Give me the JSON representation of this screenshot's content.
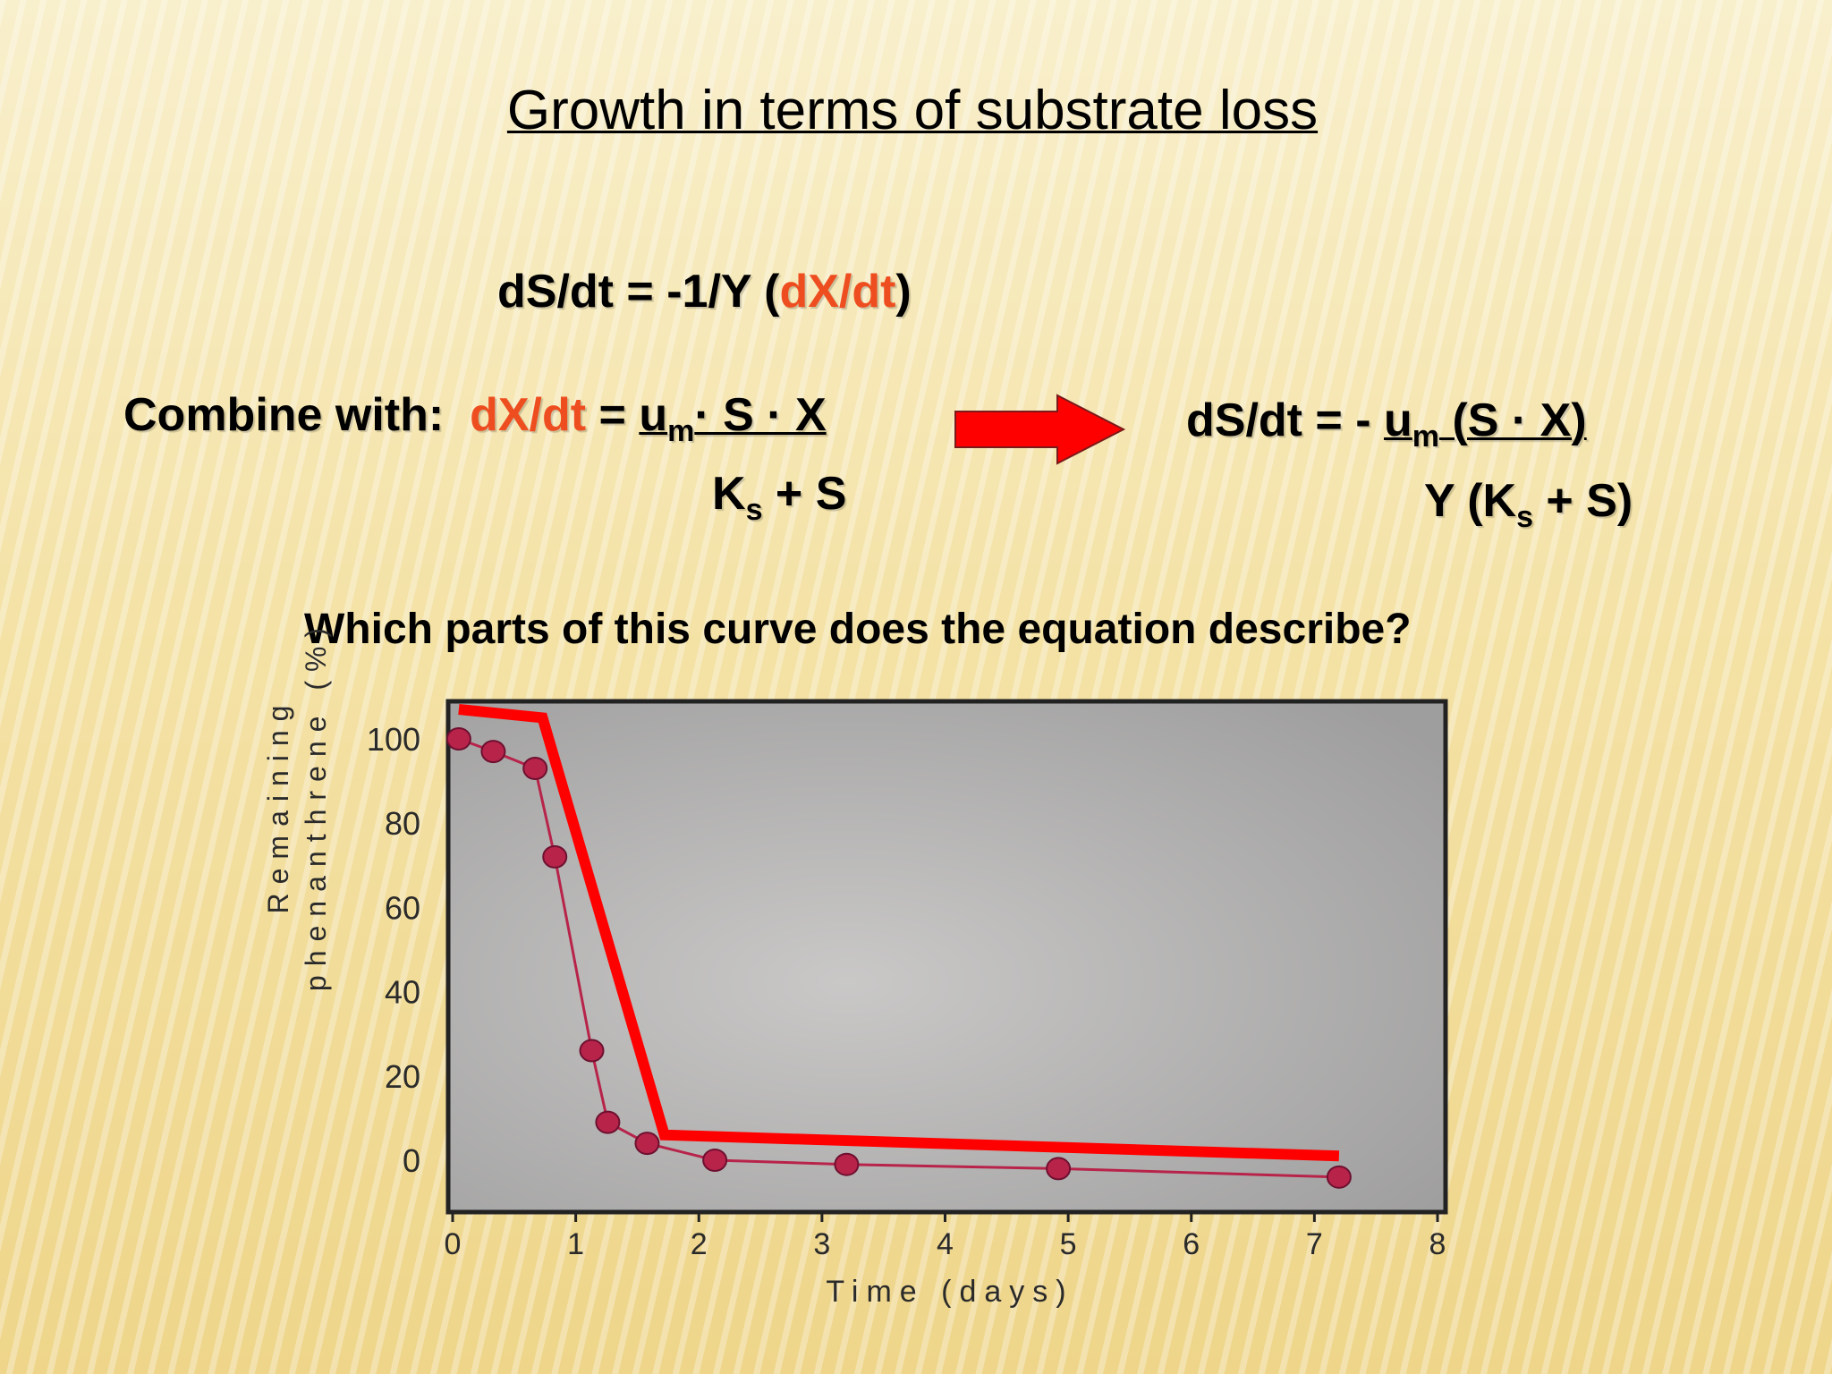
{
  "slide": {
    "title": "Growth in terms of substrate loss",
    "eq1": {
      "lhs": "dS/dt = -1/Y (",
      "red": "dX/dt",
      "close": ")"
    },
    "eq2": {
      "label": "Combine with:",
      "red": "dX/dt",
      "equals": " = ",
      "num_u": "u",
      "num_sub": "m",
      "num_rest": "· S · X",
      "den_k": "K",
      "den_sub": "s",
      "den_rest": " + S"
    },
    "arrow": {
      "color": "#ff0000",
      "icon": "right-arrow-icon"
    },
    "eq3": {
      "lhs": "dS/dt = -  ",
      "num_u": "u",
      "num_sub": "m",
      "num_rest": "  (S · X)",
      "den_pre": "Y (K",
      "den_sub": "s",
      "den_rest": " + S)"
    },
    "question": "Which parts of this curve does the equation describe?"
  },
  "chart_data": {
    "type": "scatter",
    "xlabel": "Time (days)",
    "ylabel_lines": [
      "Remaining",
      "phenanthrene (%)"
    ],
    "xlim": [
      0,
      8
    ],
    "ylim": [
      -12,
      110
    ],
    "xticks": [
      "0",
      "1",
      "2",
      "3",
      "4",
      "5",
      "6",
      "7",
      "8"
    ],
    "yticks": [
      "100",
      "80",
      "60",
      "40",
      "20",
      "0"
    ],
    "grid": false,
    "colors": {
      "data": "#b8234a",
      "overlay": "#ff0000",
      "frame": "#222222"
    },
    "series": [
      {
        "type": "line-marker",
        "x": [
          0.05,
          0.33,
          0.67,
          0.83,
          1.13,
          1.26,
          1.58,
          2.13,
          3.2,
          4.92,
          7.2
        ],
        "y": [
          100,
          97,
          93,
          72,
          26,
          9,
          4,
          0,
          -1,
          -2,
          -4
        ]
      },
      {
        "type": "line",
        "x": [
          0.05,
          0.73,
          1.72,
          7.2
        ],
        "y": [
          107,
          105,
          6,
          1
        ]
      }
    ]
  }
}
